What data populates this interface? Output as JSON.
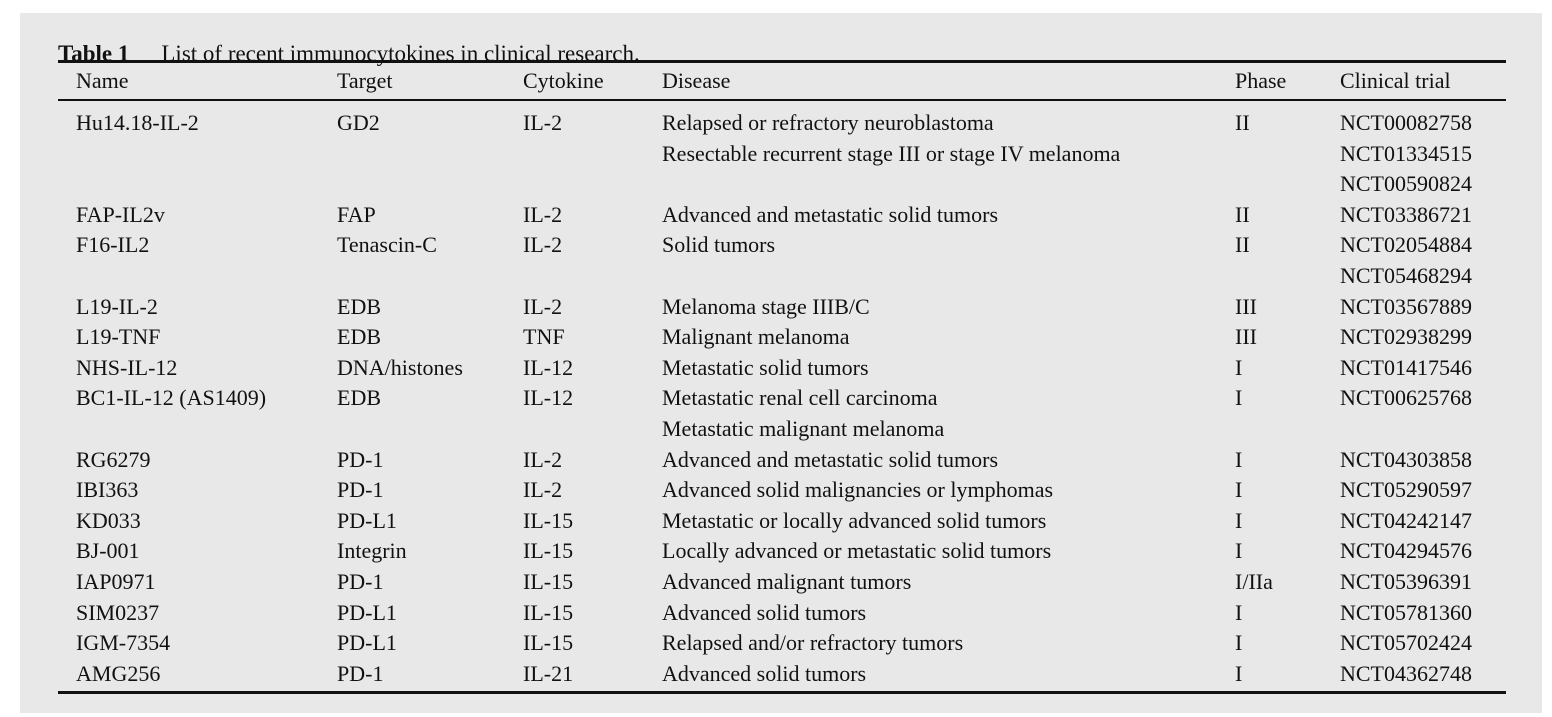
{
  "caption": {
    "label": "Table 1",
    "text": "List of recent immunocytokines in clinical research."
  },
  "columns": [
    "Name",
    "Target",
    "Cytokine",
    "Disease",
    "Phase",
    "Clinical trial"
  ],
  "rows": [
    [
      "Hu14.18-IL-2",
      "GD2",
      "IL-2",
      "Relapsed or refractory neuroblastoma",
      "II",
      "NCT00082758"
    ],
    [
      "",
      "",
      "",
      "Resectable recurrent stage III or stage IV melanoma",
      "",
      "NCT01334515"
    ],
    [
      "",
      "",
      "",
      "",
      "",
      "NCT00590824"
    ],
    [
      "FAP-IL2v",
      "FAP",
      "IL-2",
      "Advanced and metastatic solid tumors",
      "II",
      "NCT03386721"
    ],
    [
      "F16-IL2",
      "Tenascin-C",
      "IL-2",
      "Solid tumors",
      "II",
      "NCT02054884"
    ],
    [
      "",
      "",
      "",
      "",
      "",
      "NCT05468294"
    ],
    [
      "L19-IL-2",
      "EDB",
      "IL-2",
      "Melanoma stage IIIB/C",
      "III",
      "NCT03567889"
    ],
    [
      "L19-TNF",
      "EDB",
      "TNF",
      "Malignant melanoma",
      "III",
      "NCT02938299"
    ],
    [
      "NHS-IL-12",
      "DNA/histones",
      "IL-12",
      "Metastatic solid tumors",
      "I",
      "NCT01417546"
    ],
    [
      "BC1-IL-12 (AS1409)",
      "EDB",
      "IL-12",
      "Metastatic renal cell carcinoma",
      "I",
      "NCT00625768"
    ],
    [
      "",
      "",
      "",
      "Metastatic malignant melanoma",
      "",
      ""
    ],
    [
      "RG6279",
      "PD-1",
      "IL-2",
      "Advanced and metastatic solid tumors",
      "I",
      "NCT04303858"
    ],
    [
      "IBI363",
      "PD-1",
      "IL-2",
      "Advanced solid malignancies or lymphomas",
      "I",
      "NCT05290597"
    ],
    [
      "KD033",
      "PD-L1",
      "IL-15",
      "Metastatic or locally advanced solid tumors",
      "I",
      "NCT04242147"
    ],
    [
      "BJ-001",
      "Integrin",
      "IL-15",
      "Locally advanced or metastatic solid tumors",
      "I",
      "NCT04294576"
    ],
    [
      "IAP0971",
      "PD-1",
      "IL-15",
      "Advanced malignant tumors",
      "I/IIa",
      "NCT05396391"
    ],
    [
      "SIM0237",
      "PD-L1",
      "IL-15",
      "Advanced solid tumors",
      "I",
      "NCT05781360"
    ],
    [
      "IGM-7354",
      "PD-L1",
      "IL-15",
      "Relapsed and/or refractory tumors",
      "I",
      "NCT05702424"
    ],
    [
      "AMG256",
      "PD-1",
      "IL-21",
      "Advanced solid tumors",
      "I",
      "NCT04362748"
    ]
  ]
}
